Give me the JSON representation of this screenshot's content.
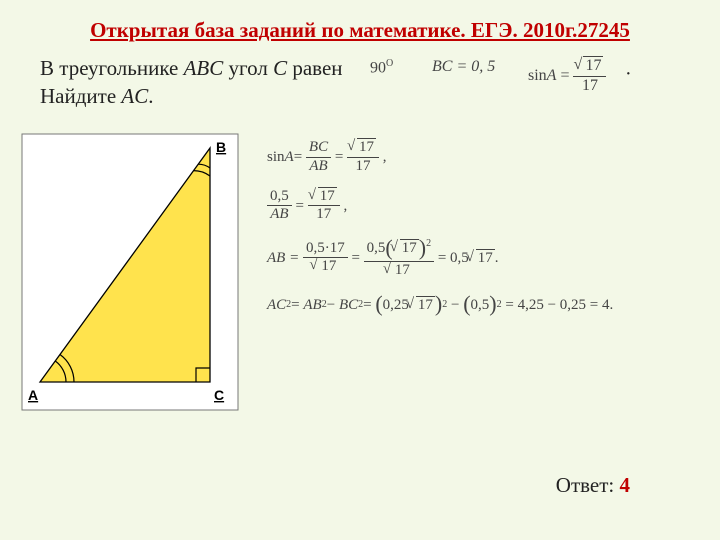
{
  "title": "Открытая база заданий по математике. ЕГЭ. 2010г.27245",
  "problem": {
    "line1_pre": "В треугольнике ",
    "tri": "ABC",
    "line1_mid": " угол ",
    "angC": "C",
    "line1_post": " равен",
    "line2_pre": "Найдите ",
    "find": "AC",
    "line2_post": "."
  },
  "given": {
    "ninety": "90",
    "deg": "O",
    "bc_lhs": "BC",
    "bc_eq": " = 0, 5",
    "sin_lhs": "sin",
    "sin_var": "A",
    "sin_eq": " = ",
    "root17": "17",
    "den17": "17"
  },
  "figure": {
    "bg": "#f3f8e7",
    "border": "#777",
    "fill": "#ffe34d",
    "stroke": "#000",
    "labels": {
      "A": "A",
      "B": "B",
      "C": "C"
    },
    "A": [
      20,
      250
    ],
    "B": [
      190,
      16
    ],
    "C": [
      190,
      250
    ],
    "right_angle_size": 14,
    "arc_A_r1": 26,
    "arc_A_r2": 34,
    "arc_B_r1": 20,
    "arc_B_r2": 28
  },
  "solution": {
    "l1": {
      "lhs": "sin ",
      "var": "A",
      "eq": " = ",
      "n1_n": "BC",
      "n1_d": "AB",
      "mid": " = ",
      "rt": "17",
      "d": "17",
      "tail": " ,"
    },
    "l2": {
      "n": "0,5",
      "d": "AB",
      "eq": " = ",
      "rt": "17",
      "dd": "17",
      "tail": " ,"
    },
    "l3": {
      "lhs": "AB = ",
      "n": "0,5·17",
      "d_rt": "17",
      "eq": " = ",
      "n2": "0,5",
      "rt2": "17",
      "sq": "2",
      "d2_rt": "17",
      "eq2": " = 0,5",
      "rt3": "17",
      "tail": "."
    },
    "l4": {
      "lhs": "AC",
      "sq": "2",
      "eq": " = ",
      "a": "AB",
      "sqa": "2",
      "minus": " − ",
      "b": "BC",
      "sqb": "2",
      "eq2": " = ",
      "p1": "0,25",
      "rt": "17",
      "sq2": "2",
      "m2": " − ",
      "p2": "0,5",
      "sq3": "2",
      "eq3": " = 4,25 − 0,25 = 4."
    }
  },
  "answer": {
    "label": "Ответ:",
    "value": "4"
  }
}
